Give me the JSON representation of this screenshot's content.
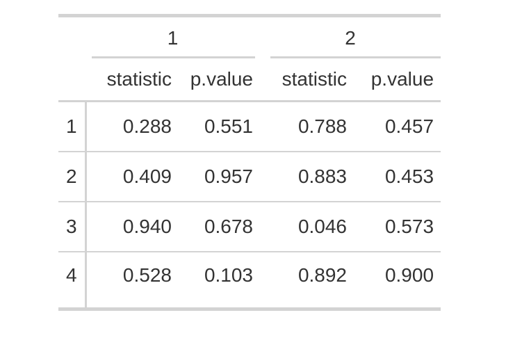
{
  "table": {
    "spanners": [
      {
        "label": "1"
      },
      {
        "label": "2"
      }
    ],
    "column_headers": [
      "statistic",
      "p.value",
      "statistic",
      "p.value"
    ],
    "rows": [
      {
        "label": "1",
        "values": [
          "0.288",
          "0.551",
          "0.788",
          "0.457"
        ]
      },
      {
        "label": "2",
        "values": [
          "0.409",
          "0.957",
          "0.883",
          "0.453"
        ]
      },
      {
        "label": "3",
        "values": [
          "0.940",
          "0.678",
          "0.046",
          "0.573"
        ]
      },
      {
        "label": "4",
        "values": [
          "0.528",
          "0.103",
          "0.892",
          "0.900"
        ]
      }
    ],
    "colors": {
      "border": "#d3d3d3",
      "text": "#333333",
      "background": "#ffffff"
    }
  },
  "chart_data": {
    "type": "table",
    "title": "",
    "column_groups": [
      "1",
      "2"
    ],
    "columns": [
      "row",
      "1 statistic",
      "1 p.value",
      "2 statistic",
      "2 p.value"
    ],
    "rows": [
      [
        1,
        0.288,
        0.551,
        0.788,
        0.457
      ],
      [
        2,
        0.409,
        0.957,
        0.883,
        0.453
      ],
      [
        3,
        0.94,
        0.678,
        0.046,
        0.573
      ],
      [
        4,
        0.528,
        0.103,
        0.892,
        0.9
      ]
    ]
  }
}
